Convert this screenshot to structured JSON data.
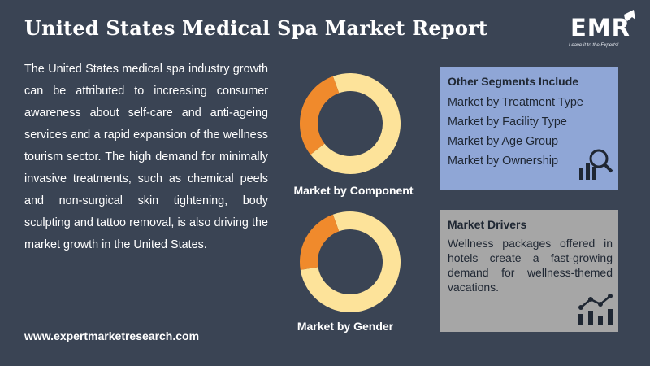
{
  "header": {
    "title": "United States Medical Spa Market Report"
  },
  "logo": {
    "name": "EMR",
    "tagline": "Leave it to the Experts!"
  },
  "intro": {
    "text": "The United States medical spa industry growth can be attributed to increasing consumer awareness about self-care and anti-ageing services and a rapid expansion of the wellness tourism sector. The high demand for minimally invasive treatments, such as chemical peels and non-surgical skin tightening, body sculpting and tattoo removal, is also driving the market growth in the United States."
  },
  "footer": {
    "website": "www.expertmarketresearch.com"
  },
  "segments_box": {
    "heading": "Other Segments Include",
    "items": [
      "Market by Treatment Type",
      "Market by Facility Type",
      "Market by Age Group",
      "Market by Ownership"
    ]
  },
  "drivers_box": {
    "heading": "Market Drivers",
    "text": "Wellness packages offered in hotels create a fast-growing demand for wellness-themed vacations."
  },
  "colors": {
    "background": "#3a4454",
    "donut_major": "#fde39a",
    "donut_minor": "#f08a2c",
    "box_segments": "#8fa6d6",
    "box_drivers": "#a6a6a6"
  },
  "chart_data": [
    {
      "type": "pie",
      "subtype": "donut",
      "label": "Market by Component",
      "values": [
        70,
        30
      ],
      "colors": [
        "#fde39a",
        "#f08a2c"
      ]
    },
    {
      "type": "pie",
      "subtype": "donut",
      "label": "Market by Gender",
      "values": [
        78,
        22
      ],
      "colors": [
        "#fde39a",
        "#f08a2c"
      ]
    }
  ]
}
